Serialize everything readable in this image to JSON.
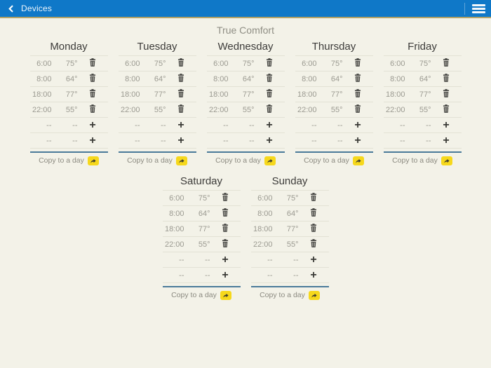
{
  "app_bar": {
    "back_label": "Devices"
  },
  "page": {
    "title": "True Comfort"
  },
  "schedule": {
    "empty_placeholder": "--",
    "copy_label": "Copy to a day",
    "empty_rows_per_day": 2,
    "days": [
      {
        "name": "Monday",
        "entries": [
          {
            "time": "6:00",
            "temp": "75°"
          },
          {
            "time": "8:00",
            "temp": "64°"
          },
          {
            "time": "18:00",
            "temp": "77°"
          },
          {
            "time": "22:00",
            "temp": "55°"
          }
        ]
      },
      {
        "name": "Tuesday",
        "entries": [
          {
            "time": "6:00",
            "temp": "75°"
          },
          {
            "time": "8:00",
            "temp": "64°"
          },
          {
            "time": "18:00",
            "temp": "77°"
          },
          {
            "time": "22:00",
            "temp": "55°"
          }
        ]
      },
      {
        "name": "Wednesday",
        "entries": [
          {
            "time": "6:00",
            "temp": "75°"
          },
          {
            "time": "8:00",
            "temp": "64°"
          },
          {
            "time": "18:00",
            "temp": "77°"
          },
          {
            "time": "22:00",
            "temp": "55°"
          }
        ]
      },
      {
        "name": "Thursday",
        "entries": [
          {
            "time": "6:00",
            "temp": "75°"
          },
          {
            "time": "8:00",
            "temp": "64°"
          },
          {
            "time": "18:00",
            "temp": "77°"
          },
          {
            "time": "22:00",
            "temp": "55°"
          }
        ]
      },
      {
        "name": "Friday",
        "entries": [
          {
            "time": "6:00",
            "temp": "75°"
          },
          {
            "time": "8:00",
            "temp": "64°"
          },
          {
            "time": "18:00",
            "temp": "77°"
          },
          {
            "time": "22:00",
            "temp": "55°"
          }
        ]
      },
      {
        "name": "Saturday",
        "entries": [
          {
            "time": "6:00",
            "temp": "75°"
          },
          {
            "time": "8:00",
            "temp": "64°"
          },
          {
            "time": "18:00",
            "temp": "77°"
          },
          {
            "time": "22:00",
            "temp": "55°"
          }
        ]
      },
      {
        "name": "Sunday",
        "entries": [
          {
            "time": "6:00",
            "temp": "75°"
          },
          {
            "time": "8:00",
            "temp": "64°"
          },
          {
            "time": "18:00",
            "temp": "77°"
          },
          {
            "time": "22:00",
            "temp": "55°"
          }
        ]
      }
    ],
    "colors": {
      "appbar_blue": "#0f78c8",
      "appbar_underline": "#b1a268",
      "background": "#f3f2e8",
      "divider_blue": "#4a7a99",
      "accent_yellow": "#f6d81c"
    }
  }
}
